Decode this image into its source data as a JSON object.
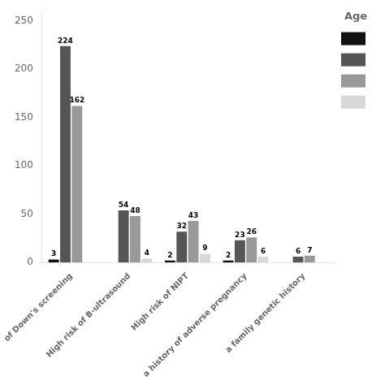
{
  "chart_data": {
    "type": "bar",
    "categories": [
      "of Down's screening",
      "High risk of B-ultrasound",
      "High risk of NIPT",
      "a history of adverse pregnancy",
      "a family genetic history"
    ],
    "series": [
      {
        "color": "#111111",
        "values": [
          3,
          0,
          2,
          2,
          0
        ]
      },
      {
        "color": "#555555",
        "values": [
          224,
          54,
          32,
          23,
          6
        ]
      },
      {
        "color": "#999999",
        "values": [
          162,
          48,
          43,
          26,
          7
        ]
      },
      {
        "color": "#d8d8d8",
        "values": [
          0,
          4,
          9,
          6,
          0
        ]
      }
    ],
    "ylim": [
      0,
      260
    ],
    "yticks": [
      0,
      50,
      100,
      150,
      200,
      250
    ],
    "legend_title": "Age",
    "legend": "right",
    "data_labels": true,
    "grid": false
  }
}
